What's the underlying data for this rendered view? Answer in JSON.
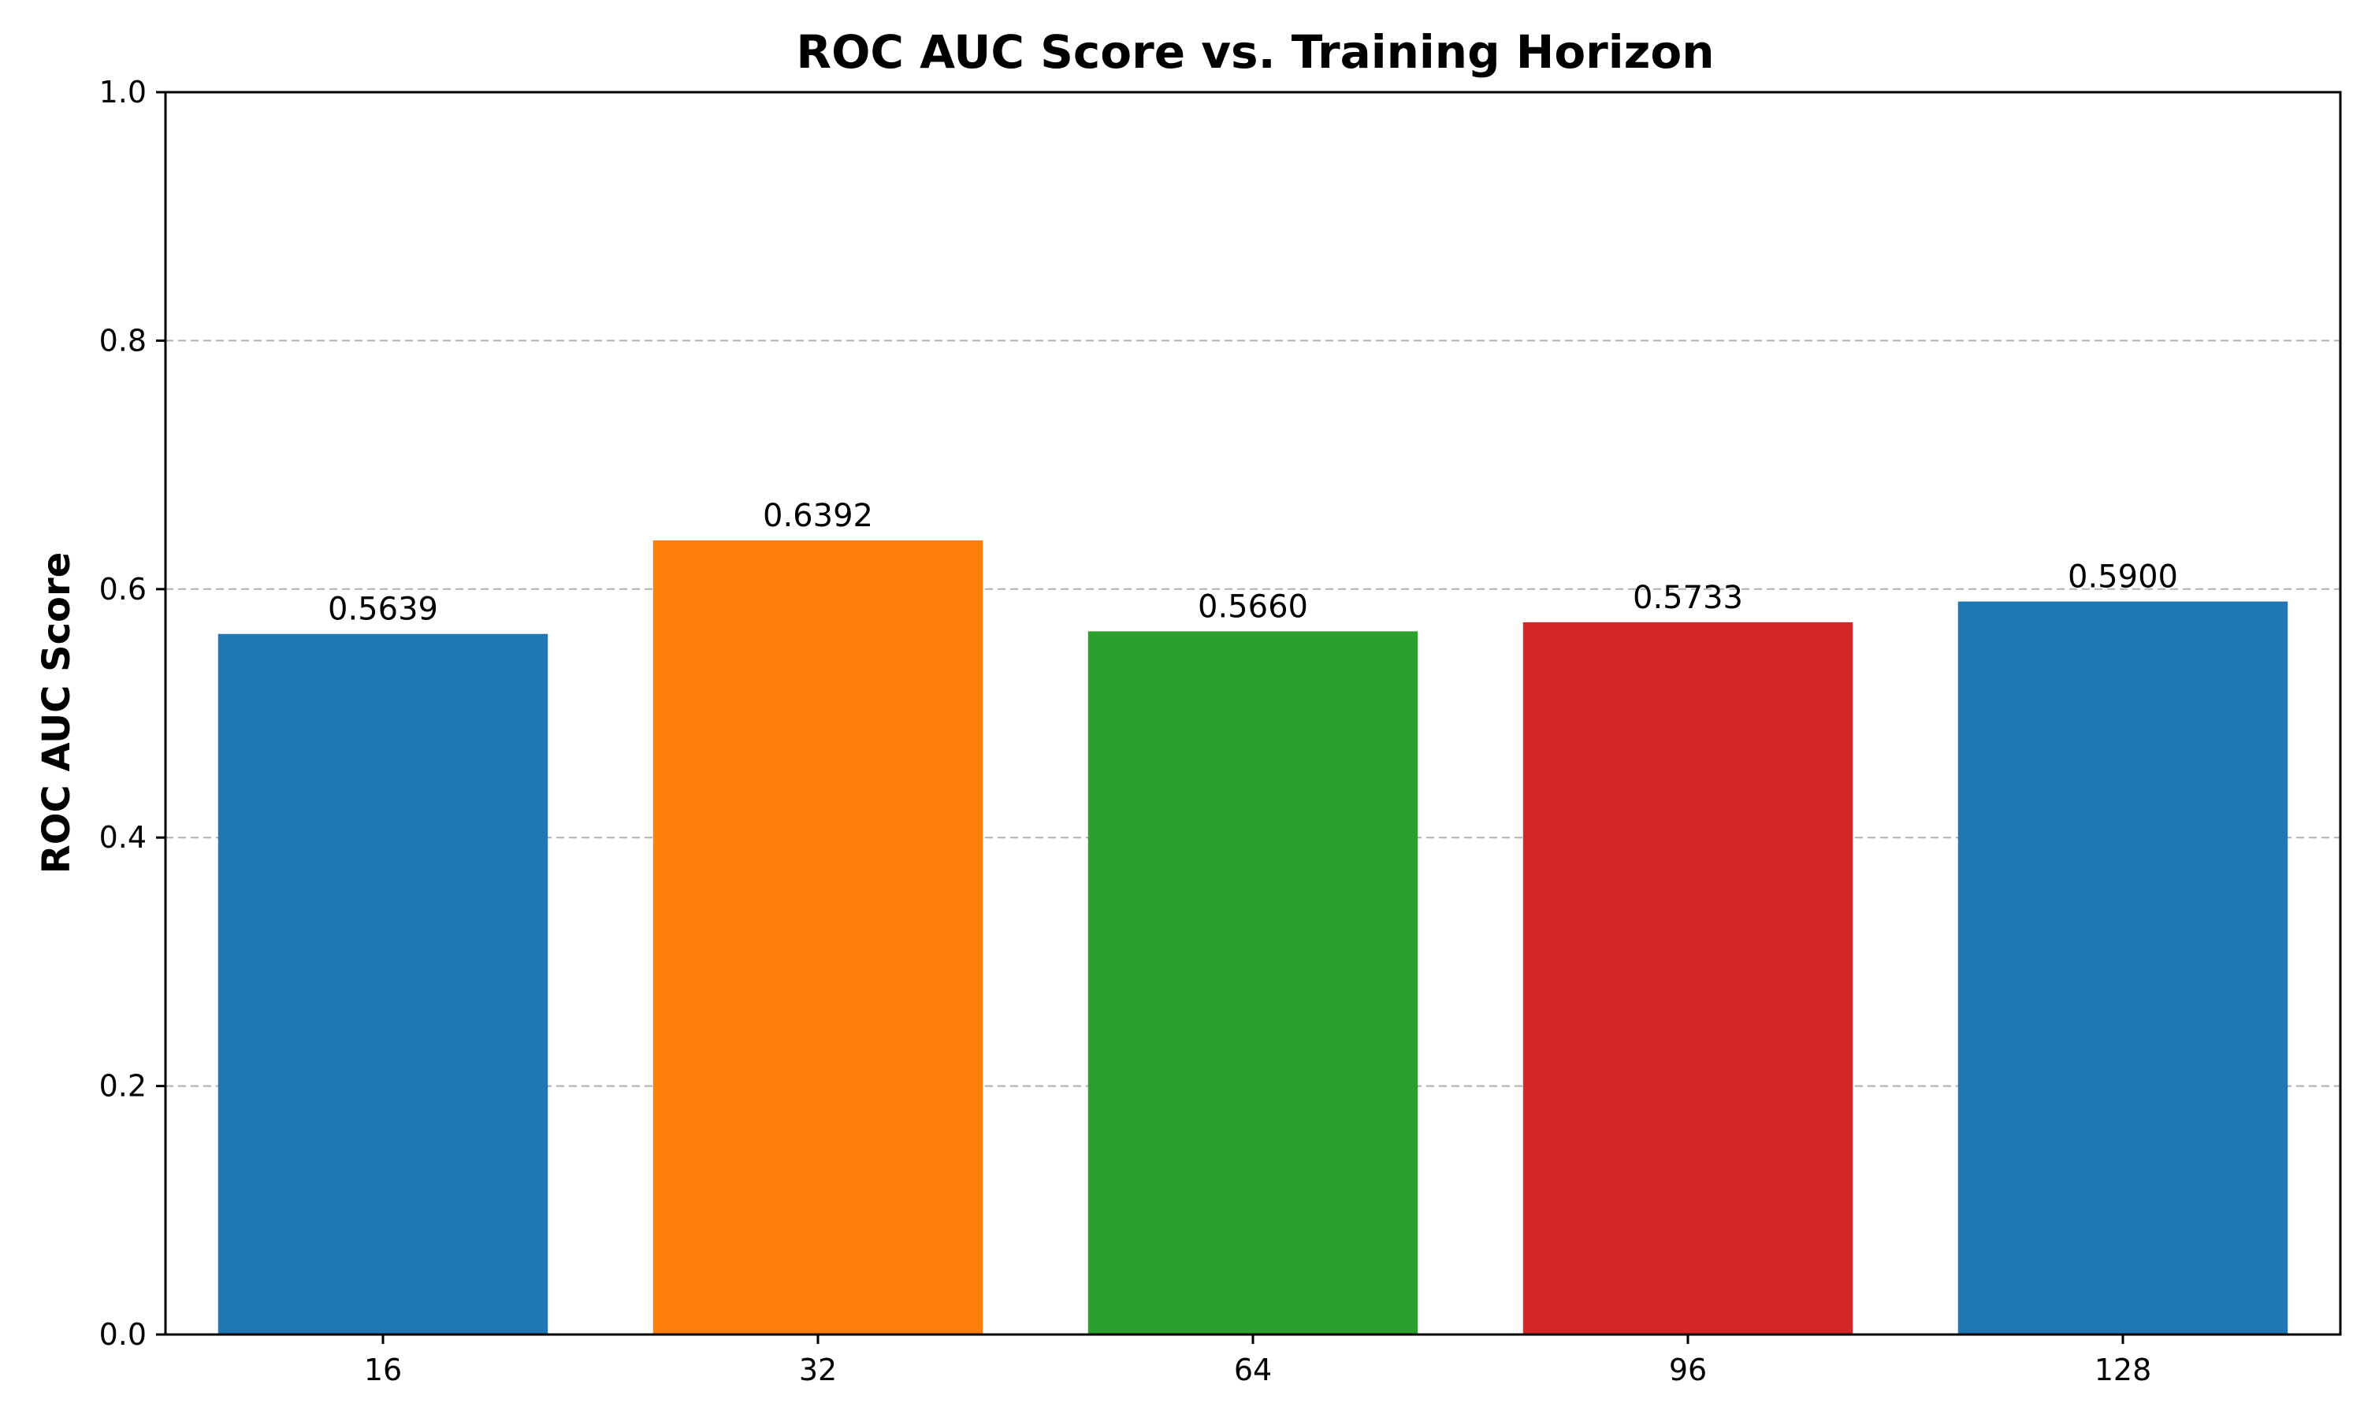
{
  "chart_data": {
    "type": "bar",
    "title": "ROC AUC Score vs. Training Horizon",
    "xlabel": "",
    "ylabel": "ROC AUC Score",
    "categories": [
      "16",
      "32",
      "64",
      "96",
      "128"
    ],
    "values": [
      0.5639,
      0.6392,
      0.566,
      0.5733,
      0.59
    ],
    "value_labels": [
      "0.5639",
      "0.6392",
      "0.5660",
      "0.5733",
      "0.5900"
    ],
    "bar_colors": [
      "#1f77b4",
      "#ff7f0e",
      "#2ca02c",
      "#d62728",
      "#1f77b4"
    ],
    "ylim": [
      0.0,
      1.0
    ],
    "yticks": [
      0.0,
      0.2,
      0.4,
      0.6,
      0.8,
      1.0
    ],
    "ytick_labels": [
      "0.0",
      "0.2",
      "0.4",
      "0.6",
      "0.8",
      "1.0"
    ],
    "grid": {
      "axis": "y",
      "style": "dashed",
      "color": "#b0b0b0"
    },
    "legend": "none"
  }
}
